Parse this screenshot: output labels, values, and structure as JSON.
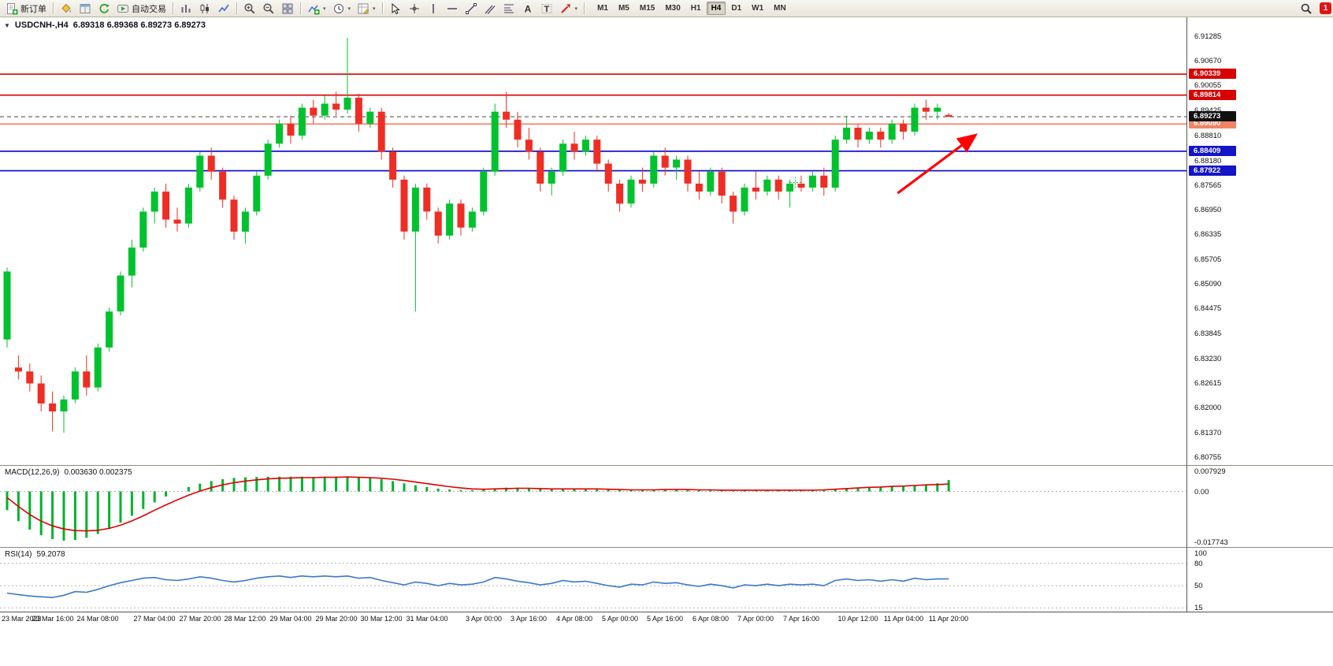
{
  "toolbar": {
    "new_order_label": "新订单",
    "autotrading_label": "自动交易",
    "timeframes": [
      "M1",
      "M5",
      "M15",
      "M30",
      "H1",
      "H4",
      "D1",
      "W1",
      "MN"
    ],
    "active_timeframe": "H4",
    "notification_count": "1"
  },
  "chart": {
    "collapse_icon": "▼",
    "title_symbol": "USDCNH-,H4",
    "title_ohlc": "6.89318 6.89368 6.89273 6.89273"
  },
  "macd": {
    "label": "MACD(12,26,9)",
    "values": "0.003630 0.002375"
  },
  "rsi": {
    "label": "RSI(14)",
    "value": "59.2078"
  },
  "chart_data": {
    "type": "candlestick",
    "symbol": "USDCNH-",
    "timeframe": "H4",
    "ohlc_current": {
      "open": 6.89318,
      "high": 6.89368,
      "low": 6.89273,
      "close": 6.89273
    },
    "y_range": [
      6.8056,
      6.9176
    ],
    "y_ticks": [
      6.91285,
      6.9067,
      6.90055,
      6.89425,
      6.8881,
      6.8818,
      6.87565,
      6.8695,
      6.86335,
      6.85705,
      6.8509,
      6.84475,
      6.83845,
      6.8323,
      6.82615,
      6.82,
      6.8137,
      6.80755
    ],
    "price_lines": [
      {
        "value": 6.90339,
        "color": "#d80000",
        "style": "solid",
        "width": 1.6,
        "badge": "#d80000",
        "role": "resistance"
      },
      {
        "value": 6.89814,
        "color": "#d80000",
        "style": "solid",
        "width": 1.6,
        "badge": "#d80000",
        "role": "resistance"
      },
      {
        "value": 6.8909,
        "color": "#f08465",
        "style": "solid",
        "width": 1.8,
        "badge": "#f08465",
        "role": "level"
      },
      {
        "value": 6.88409,
        "color": "#1414c8",
        "style": "solid",
        "width": 1.8,
        "badge": "#1414c8",
        "role": "support"
      },
      {
        "value": 6.87922,
        "color": "#1414c8",
        "style": "solid",
        "width": 1.8,
        "badge": "#1414c8",
        "role": "support"
      },
      {
        "value": 6.89273,
        "color": "#444444",
        "style": "dashed",
        "width": 1,
        "badge": "#101010",
        "role": "current-price"
      }
    ],
    "candles": [
      [
        6.837,
        6.855,
        6.835,
        6.854
      ],
      [
        6.83,
        6.833,
        6.827,
        6.829
      ],
      [
        6.829,
        6.831,
        6.824,
        6.826
      ],
      [
        6.826,
        6.828,
        6.819,
        6.821
      ],
      [
        6.821,
        6.824,
        6.814,
        6.819
      ],
      [
        6.819,
        6.823,
        6.8137,
        6.822
      ],
      [
        6.822,
        6.83,
        6.821,
        6.829
      ],
      [
        6.829,
        6.833,
        6.823,
        6.825
      ],
      [
        6.825,
        6.836,
        6.824,
        6.835
      ],
      [
        6.835,
        6.845,
        6.834,
        6.844
      ],
      [
        6.844,
        6.854,
        6.843,
        6.853
      ],
      [
        6.853,
        6.862,
        6.85,
        6.86
      ],
      [
        6.86,
        6.87,
        6.859,
        6.869
      ],
      [
        6.869,
        6.875,
        6.866,
        6.874
      ],
      [
        6.874,
        6.876,
        6.865,
        6.867
      ],
      [
        6.867,
        6.87,
        6.864,
        6.866
      ],
      [
        6.866,
        6.876,
        6.865,
        6.875
      ],
      [
        6.875,
        6.884,
        6.874,
        6.883
      ],
      [
        6.883,
        6.885,
        6.877,
        6.879
      ],
      [
        6.879,
        6.88,
        6.87,
        6.872
      ],
      [
        6.872,
        6.873,
        6.862,
        6.864
      ],
      [
        6.864,
        6.87,
        6.861,
        6.869
      ],
      [
        6.869,
        6.879,
        6.868,
        6.878
      ],
      [
        6.878,
        6.887,
        6.877,
        6.886
      ],
      [
        6.886,
        6.892,
        6.885,
        6.891
      ],
      [
        6.891,
        6.893,
        6.886,
        6.888
      ],
      [
        6.888,
        6.896,
        6.887,
        6.895
      ],
      [
        6.895,
        6.897,
        6.891,
        6.893
      ],
      [
        6.893,
        6.898,
        6.892,
        6.896
      ],
      [
        6.896,
        6.899,
        6.893,
        6.8945
      ],
      [
        6.8945,
        6.9125,
        6.8935,
        6.8975
      ],
      [
        6.8975,
        6.8985,
        6.889,
        6.891
      ],
      [
        6.891,
        6.895,
        6.89,
        6.894
      ],
      [
        6.894,
        6.895,
        6.882,
        6.884
      ],
      [
        6.884,
        6.885,
        6.875,
        6.877
      ],
      [
        6.877,
        6.878,
        6.862,
        6.864
      ],
      [
        6.864,
        6.876,
        6.844,
        6.875
      ],
      [
        6.875,
        6.876,
        6.867,
        6.869
      ],
      [
        6.869,
        6.87,
        6.861,
        6.863
      ],
      [
        6.863,
        6.872,
        6.862,
        6.871
      ],
      [
        6.871,
        6.872,
        6.863,
        6.865
      ],
      [
        6.865,
        6.87,
        6.864,
        6.869
      ],
      [
        6.869,
        6.88,
        6.868,
        6.879
      ],
      [
        6.879,
        6.896,
        6.878,
        6.894
      ],
      [
        6.894,
        6.899,
        6.89,
        6.892
      ],
      [
        6.892,
        6.894,
        6.885,
        6.887
      ],
      [
        6.887,
        6.89,
        6.882,
        6.884
      ],
      [
        6.884,
        6.885,
        6.874,
        6.876
      ],
      [
        6.876,
        6.88,
        6.873,
        6.879
      ],
      [
        6.879,
        6.887,
        6.878,
        6.886
      ],
      [
        6.886,
        6.889,
        6.882,
        6.884
      ],
      [
        6.884,
        6.888,
        6.883,
        6.887
      ],
      [
        6.887,
        6.888,
        6.879,
        6.881
      ],
      [
        6.881,
        6.882,
        6.874,
        6.876
      ],
      [
        6.876,
        6.877,
        6.869,
        6.871
      ],
      [
        6.871,
        6.878,
        6.87,
        6.877
      ],
      [
        6.877,
        6.88,
        6.874,
        6.876
      ],
      [
        6.876,
        6.884,
        6.875,
        6.883
      ],
      [
        6.883,
        6.885,
        6.878,
        6.88
      ],
      [
        6.88,
        6.883,
        6.877,
        6.882
      ],
      [
        6.882,
        6.883,
        6.874,
        6.876
      ],
      [
        6.876,
        6.879,
        6.872,
        6.874
      ],
      [
        6.874,
        6.88,
        6.873,
        6.879
      ],
      [
        6.879,
        6.88,
        6.871,
        6.873
      ],
      [
        6.873,
        6.874,
        6.866,
        6.869
      ],
      [
        6.869,
        6.876,
        6.868,
        6.875
      ],
      [
        6.875,
        6.879,
        6.872,
        6.874
      ],
      [
        6.874,
        6.878,
        6.873,
        6.877
      ],
      [
        6.877,
        6.878,
        6.872,
        6.874
      ],
      [
        6.874,
        6.877,
        6.87,
        6.876
      ],
      [
        6.876,
        6.878,
        6.874,
        6.875
      ],
      [
        6.875,
        6.879,
        6.874,
        6.878
      ],
      [
        6.878,
        6.88,
        6.873,
        6.875
      ],
      [
        6.875,
        6.888,
        6.874,
        6.887
      ],
      [
        6.887,
        6.893,
        6.886,
        6.89
      ],
      [
        6.89,
        6.891,
        6.885,
        6.887
      ],
      [
        6.887,
        6.89,
        6.886,
        6.889
      ],
      [
        6.889,
        6.89,
        6.885,
        6.887
      ],
      [
        6.887,
        6.892,
        6.886,
        6.891
      ],
      [
        6.891,
        6.892,
        6.887,
        6.889
      ],
      [
        6.889,
        6.896,
        6.888,
        6.895
      ],
      [
        6.895,
        6.897,
        6.892,
        6.894
      ],
      [
        6.894,
        6.896,
        6.892,
        6.895
      ],
      [
        6.89318,
        6.89368,
        6.89273,
        6.89273
      ]
    ],
    "colors": {
      "bull": "#00c22e",
      "bear": "#ee2e24",
      "macd_hist": "#00b22d",
      "macd_signal": "#e00000",
      "rsi_line": "#3c78c8",
      "levels": "#b4b4b4",
      "annotation": "#ff0000"
    },
    "x_labels": [
      "23 Mar 2023",
      "23 Mar 16:00",
      "24 Mar 08:00",
      "27 Mar 04:00",
      "27 Mar 20:00",
      "28 Mar 12:00",
      "29 Mar 04:00",
      "29 Mar 20:00",
      "30 Mar 12:00",
      "31 Mar 04:00",
      "3 Apr 00:00",
      "3 Apr 16:00",
      "4 Apr 08:00",
      "5 Apr 00:00",
      "5 Apr 16:00",
      "6 Apr 08:00",
      "7 Apr 00:00",
      "7 Apr 16:00",
      "10 Apr 12:00",
      "11 Apr 04:00",
      "11 Apr 20:00"
    ],
    "x_label_bars": [
      0,
      4,
      8,
      13,
      17,
      21,
      25,
      29,
      33,
      37,
      42,
      46,
      50,
      54,
      58,
      62,
      66,
      70,
      75,
      79,
      83
    ],
    "macd": {
      "range": [
        0.007929,
        -0.017743
      ],
      "axis": [
        "0.007929",
        "0.00",
        "-0.017743"
      ],
      "histogram": [
        -0.006,
        -0.0095,
        -0.0122,
        -0.014,
        -0.0152,
        -0.0157,
        -0.0155,
        -0.0148,
        -0.0136,
        -0.012,
        -0.01,
        -0.0078,
        -0.0056,
        -0.0035,
        -0.0016,
        0.0,
        0.0014,
        0.0025,
        0.0033,
        0.0039,
        0.0043,
        0.0045,
        0.0046,
        0.0047,
        0.0047,
        0.0047,
        0.0047,
        0.0046,
        0.0047,
        0.0047,
        0.0048,
        0.0045,
        0.0043,
        0.0039,
        0.0033,
        0.0026,
        0.002,
        0.0014,
        0.0009,
        0.0006,
        0.0004,
        0.0004,
        0.0006,
        0.001,
        0.0012,
        0.0012,
        0.0011,
        0.0008,
        0.0007,
        0.0008,
        0.0008,
        0.0009,
        0.0008,
        0.0006,
        0.0004,
        0.0004,
        0.0004,
        0.0006,
        0.0006,
        0.0006,
        0.0005,
        0.0004,
        0.0004,
        0.0003,
        0.0002,
        0.0003,
        0.0003,
        0.0003,
        0.0003,
        0.0003,
        0.0003,
        0.0004,
        0.0005,
        0.0008,
        0.0011,
        0.0012,
        0.0013,
        0.0014,
        0.0016,
        0.0017,
        0.002,
        0.0022,
        0.0026,
        0.00363
      ],
      "signal": [
        -0.002,
        -0.0048,
        -0.0074,
        -0.0095,
        -0.011,
        -0.012,
        -0.0125,
        -0.0126,
        -0.0124,
        -0.0118,
        -0.0108,
        -0.0094,
        -0.0078,
        -0.006,
        -0.0043,
        -0.0027,
        -0.0012,
        0.0001,
        0.0012,
        0.0021,
        0.0028,
        0.0033,
        0.0037,
        0.004,
        0.0042,
        0.0043,
        0.0044,
        0.0044,
        0.0045,
        0.0045,
        0.0046,
        0.0045,
        0.0044,
        0.0042,
        0.0039,
        0.0035,
        0.003,
        0.0025,
        0.002,
        0.0015,
        0.0011,
        0.0008,
        0.0007,
        0.0008,
        0.0009,
        0.001,
        0.001,
        0.0009,
        0.0008,
        0.0008,
        0.0008,
        0.0008,
        0.0008,
        0.0007,
        0.0006,
        0.0005,
        0.0005,
        0.0005,
        0.0006,
        0.0006,
        0.0006,
        0.0005,
        0.0005,
        0.0004,
        0.0004,
        0.0004,
        0.0004,
        0.0004,
        0.0004,
        0.0004,
        0.0004,
        0.0004,
        0.0005,
        0.0007,
        0.0009,
        0.0011,
        0.0013,
        0.0014,
        0.0016,
        0.0017,
        0.0019,
        0.0021,
        0.0022,
        0.002375
      ]
    },
    "rsi": {
      "range": [
        15,
        100
      ],
      "levels": [
        80,
        50,
        20
      ],
      "axis": [
        "100",
        "80",
        "50",
        "15"
      ],
      "values": [
        40,
        38,
        36,
        35,
        34,
        37,
        42,
        41,
        45,
        50,
        54,
        57,
        60,
        61,
        58,
        57,
        59,
        62,
        60,
        57,
        55,
        57,
        60,
        62,
        63,
        61,
        63,
        62,
        63,
        62,
        63,
        60,
        61,
        57,
        54,
        51,
        55,
        53,
        50,
        53,
        51,
        52,
        55,
        61,
        59,
        56,
        54,
        51,
        53,
        57,
        55,
        56,
        53,
        50,
        48,
        52,
        51,
        55,
        53,
        54,
        51,
        49,
        52,
        50,
        47,
        51,
        50,
        52,
        50,
        52,
        51,
        52,
        50,
        57,
        59,
        57,
        58,
        56,
        58,
        56,
        60,
        58,
        59,
        59.2078
      ]
    },
    "annotations": {
      "arrow": {
        "x1_bar": 78.5,
        "y1_price": 6.8736,
        "x2_bar": 85.2,
        "y2_price": 6.8878
      },
      "cross_marker": {
        "bar": 69.5,
        "price": 6.8763
      }
    }
  }
}
